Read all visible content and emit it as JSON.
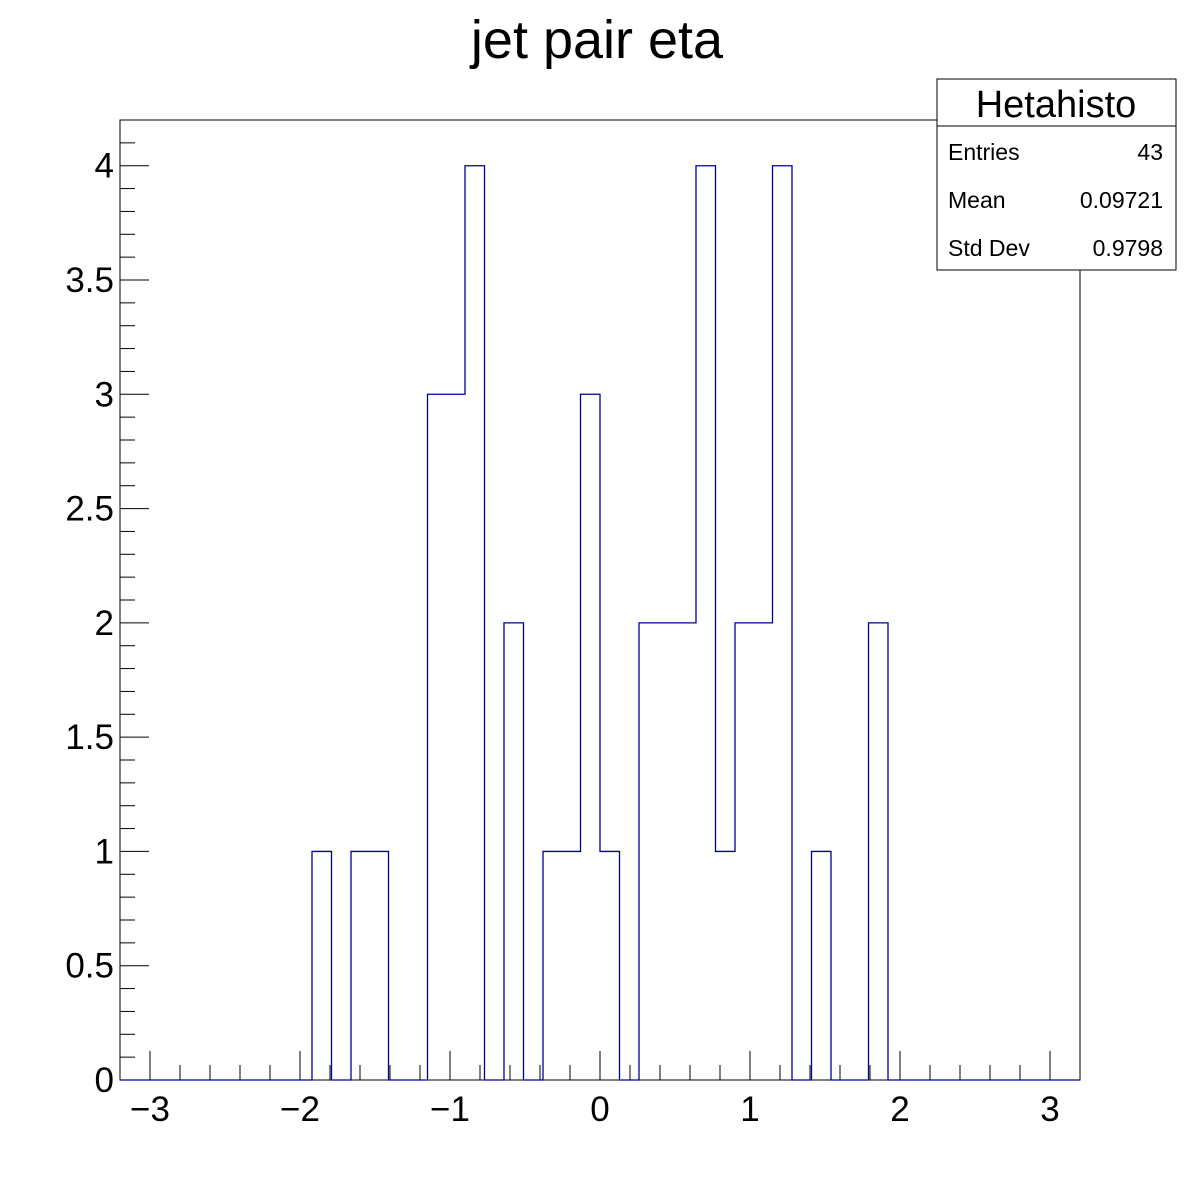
{
  "chart_data": {
    "type": "histogram",
    "title": "jet pair eta",
    "xlabel": "",
    "ylabel": "",
    "xlim": [
      -3.2,
      3.2
    ],
    "ylim": [
      0,
      4.2
    ],
    "bin_edges": [
      -1.92,
      -1.79,
      -1.66,
      -1.41,
      -1.15,
      -0.9,
      -0.77,
      -0.64,
      -0.51,
      -0.38,
      -0.13,
      0,
      0.13,
      0.26,
      0.64,
      0.77,
      0.9,
      1.15,
      1.28,
      1.41,
      1.54,
      1.79,
      1.92
    ],
    "counts": [
      1,
      0,
      1,
      0,
      3,
      4,
      0,
      2,
      0,
      1,
      3,
      1,
      0,
      2,
      4,
      1,
      2,
      4,
      0,
      1,
      0,
      2
    ],
    "line_color": "#000099",
    "x_ticks": [
      -3,
      -2,
      -1,
      0,
      1,
      2,
      3
    ],
    "x_tick_labels": [
      "−3",
      "−2",
      "−1",
      "0",
      "1",
      "2",
      "3"
    ],
    "y_ticks": [
      0,
      0.5,
      1,
      1.5,
      2,
      2.5,
      3,
      3.5,
      4
    ],
    "y_tick_labels": [
      "0",
      "0.5",
      "1",
      "1.5",
      "2",
      "2.5",
      "3",
      "3.5",
      "4"
    ],
    "grid": false,
    "stats_box": {
      "name": "Hetahisto",
      "placement": "top-right",
      "rows": [
        {
          "label": "Entries",
          "value": "43"
        },
        {
          "label": "Mean",
          "value": "0.09721"
        },
        {
          "label": "Std Dev",
          "value": "0.9798"
        }
      ]
    }
  }
}
